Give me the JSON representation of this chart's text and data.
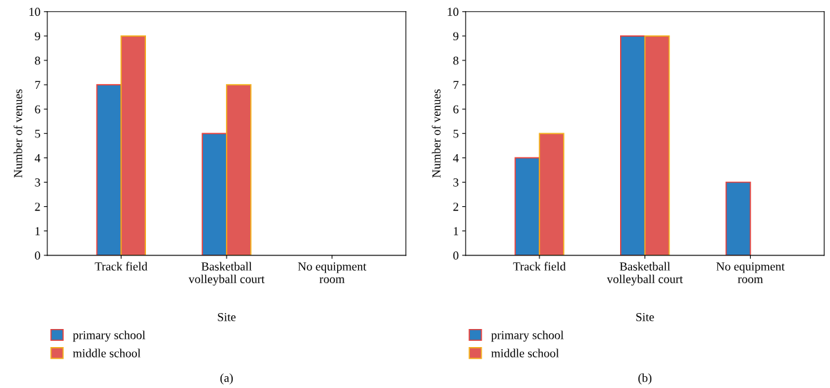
{
  "chart_data": [
    {
      "type": "bar",
      "categories": [
        "Track field",
        "Basketball\nvolleyball court",
        "No equipment\nroom"
      ],
      "xlabel": "Site",
      "ylabel": "Number of venues",
      "ylim": [
        0,
        10
      ],
      "yticks": [
        0,
        1,
        2,
        3,
        4,
        5,
        6,
        7,
        8,
        9,
        10
      ],
      "legend": "bottom left",
      "grid": false,
      "annotations": [
        "(a)"
      ],
      "series": [
        {
          "name": "primary school",
          "color": "#2a7fc1",
          "values": [
            7,
            5,
            null
          ]
        },
        {
          "name": "middle school",
          "color": "#e05956",
          "values": [
            9,
            7,
            null
          ]
        }
      ]
    },
    {
      "type": "bar",
      "categories": [
        "Track field",
        "Basketball\nvolleyball court",
        "No equipment\nroom"
      ],
      "xlabel": "Site",
      "ylabel": "Number of venues",
      "ylim": [
        0,
        10
      ],
      "yticks": [
        0,
        1,
        2,
        3,
        4,
        5,
        6,
        7,
        8,
        9,
        10
      ],
      "legend": "bottom left",
      "grid": false,
      "annotations": [
        "(b)"
      ],
      "series": [
        {
          "name": "primary school",
          "color": "#2a7fc1",
          "values": [
            4,
            9,
            3
          ]
        },
        {
          "name": "middle school",
          "color": "#e05956",
          "values": [
            5,
            9,
            null
          ]
        }
      ]
    }
  ]
}
